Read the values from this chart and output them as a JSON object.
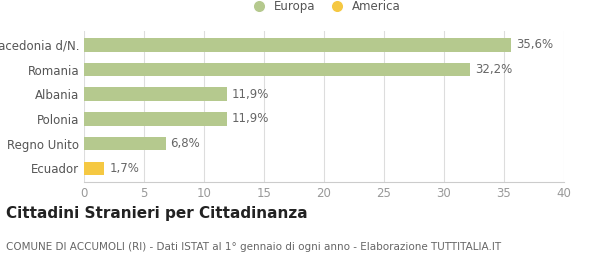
{
  "categories": [
    "Ecuador",
    "Regno Unito",
    "Polonia",
    "Albania",
    "Romania",
    "Macedonia d/N."
  ],
  "values": [
    1.7,
    6.8,
    11.9,
    11.9,
    32.2,
    35.6
  ],
  "bar_colors": [
    "#f5c842",
    "#b5c98e",
    "#b5c98e",
    "#b5c98e",
    "#b5c98e",
    "#b5c98e"
  ],
  "bar_labels": [
    "1,7%",
    "6,8%",
    "11,9%",
    "11,9%",
    "32,2%",
    "35,6%"
  ],
  "legend_labels": [
    "Europa",
    "America"
  ],
  "legend_colors": [
    "#b5c98e",
    "#f5c842"
  ],
  "title": "Cittadini Stranieri per Cittadinanza",
  "subtitle": "COMUNE DI ACCUMOLI (RI) - Dati ISTAT al 1° gennaio di ogni anno - Elaborazione TUTTITALIA.IT",
  "xlim": [
    0,
    40
  ],
  "xticks": [
    0,
    5,
    10,
    15,
    20,
    25,
    30,
    35,
    40
  ],
  "background_color": "#ffffff",
  "bar_edge_color": "none",
  "label_fontsize": 8.5,
  "tick_fontsize": 8.5,
  "title_fontsize": 11,
  "subtitle_fontsize": 7.5,
  "bar_height": 0.55
}
